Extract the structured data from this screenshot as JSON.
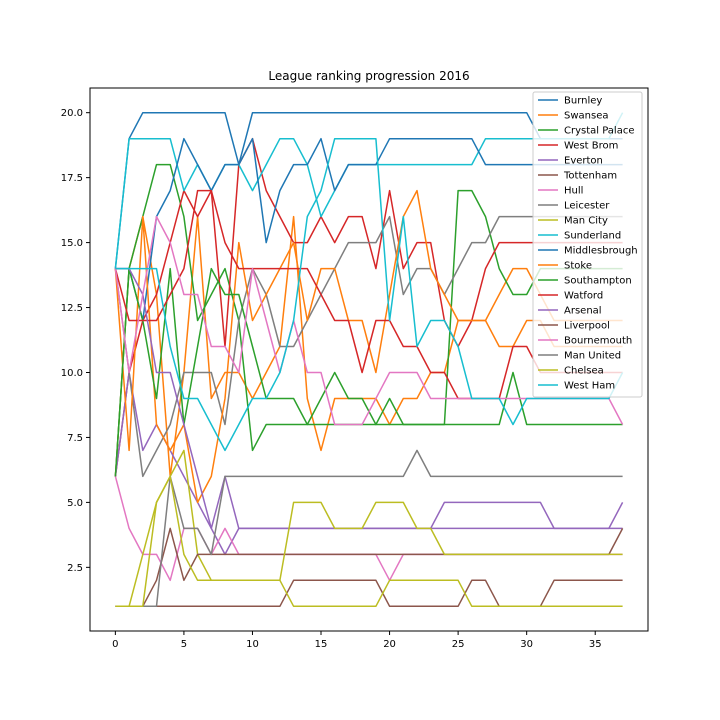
{
  "chart_data": {
    "type": "line",
    "title": "League ranking progression 2016",
    "xlabel": "",
    "ylabel": "",
    "xlim": [
      -1.85,
      38.85
    ],
    "ylim": [
      0.05,
      20.95
    ],
    "xticks": [
      0,
      5,
      10,
      15,
      20,
      25,
      30,
      35
    ],
    "xtick_labels": [
      "0",
      "5",
      "10",
      "15",
      "20",
      "25",
      "30",
      "35"
    ],
    "yticks": [
      2.5,
      5.0,
      7.5,
      10.0,
      12.5,
      15.0,
      17.5,
      20.0
    ],
    "ytick_labels": [
      "2.5",
      "5.0",
      "7.5",
      "10.0",
      "12.5",
      "15.0",
      "17.5",
      "20.0"
    ],
    "grid": false,
    "legend_position": "top-right",
    "x": [
      0,
      1,
      2,
      3,
      4,
      5,
      6,
      7,
      8,
      9,
      10,
      11,
      12,
      13,
      14,
      15,
      16,
      17,
      18,
      19,
      20,
      21,
      22,
      23,
      24,
      25,
      26,
      27,
      28,
      29,
      30,
      31,
      32,
      33,
      34,
      35,
      36,
      37
    ],
    "series": [
      {
        "name": "Burnley",
        "color": "#1f77b4",
        "values": [
          14,
          19,
          20,
          20,
          20,
          20,
          20,
          20,
          20,
          18,
          20,
          20,
          20,
          20,
          20,
          20,
          20,
          20,
          20,
          20,
          20,
          20,
          20,
          20,
          20,
          20,
          20,
          20,
          20,
          20,
          20,
          19,
          19,
          19,
          19,
          19,
          19,
          19
        ]
      },
      {
        "name": "Swansea",
        "color": "#ff7f0e",
        "values": [
          6,
          14,
          16,
          13,
          6,
          10,
          16,
          9,
          10,
          10,
          9,
          10,
          11,
          16,
          9,
          7,
          9,
          9,
          9,
          9,
          8,
          9,
          9,
          10,
          10,
          12,
          12,
          12,
          13,
          14,
          14,
          13,
          12,
          12,
          12,
          12,
          12,
          12
        ]
      },
      {
        "name": "Crystal Palace",
        "color": "#2ca02c",
        "values": [
          6,
          14,
          16,
          18,
          18,
          16,
          12,
          13,
          14,
          12,
          7,
          8,
          8,
          8,
          8,
          9,
          10,
          9,
          9,
          8,
          9,
          8,
          8,
          8,
          8,
          17,
          17,
          16,
          14,
          13,
          13,
          14,
          14,
          14,
          14,
          14,
          14,
          14
        ]
      },
      {
        "name": "West Brom",
        "color": "#d62728",
        "values": [
          6,
          10,
          12,
          13,
          15,
          17,
          16,
          17,
          11,
          18,
          19,
          17,
          16,
          15,
          15,
          16,
          15,
          16,
          16,
          14,
          17,
          14,
          15,
          15,
          12,
          11,
          12,
          14,
          15,
          15,
          15,
          15,
          15,
          15,
          15,
          15,
          15,
          15
        ]
      },
      {
        "name": "Everton",
        "color": "#9467bd",
        "values": [
          6,
          10,
          7,
          8,
          7,
          6,
          5,
          4,
          3,
          4,
          4,
          4,
          4,
          4,
          4,
          4,
          4,
          4,
          4,
          4,
          4,
          4,
          4,
          4,
          5,
          5,
          5,
          5,
          5,
          5,
          5,
          5,
          4,
          4,
          4,
          4,
          4,
          5
        ]
      },
      {
        "name": "Tottenham",
        "color": "#8c564b",
        "values": [
          1,
          1,
          1,
          1,
          1,
          1,
          1,
          1,
          1,
          1,
          1,
          1,
          1,
          2,
          2,
          2,
          2,
          2,
          2,
          2,
          1,
          1,
          1,
          1,
          1,
          1,
          2,
          2,
          1,
          1,
          1,
          1,
          2,
          2,
          2,
          2,
          2,
          2
        ]
      },
      {
        "name": "Hull",
        "color": "#e377c2",
        "values": [
          6,
          4,
          3,
          3,
          2,
          4,
          4,
          3,
          4,
          3,
          3,
          3,
          3,
          3,
          3,
          3,
          3,
          3,
          3,
          3,
          2,
          3,
          3,
          3,
          3,
          3,
          3,
          3,
          3,
          3,
          3,
          3,
          3,
          3,
          3,
          3,
          3,
          3
        ]
      },
      {
        "name": "Leicester",
        "color": "#7f7f7f",
        "values": [
          14,
          10,
          6,
          7,
          8,
          10,
          10,
          10,
          8,
          12,
          14,
          13,
          11,
          11,
          12,
          13,
          14,
          15,
          15,
          15,
          16,
          13,
          14,
          14,
          13,
          14,
          15,
          15,
          16,
          16,
          16,
          16,
          16,
          16,
          16,
          16,
          16,
          16
        ]
      },
      {
        "name": "Man City",
        "color": "#bcbd22",
        "values": [
          1,
          1,
          3,
          5,
          6,
          7,
          3,
          2,
          2,
          2,
          2,
          2,
          2,
          1,
          1,
          1,
          1,
          1,
          1,
          1,
          2,
          2,
          2,
          2,
          2,
          2,
          1,
          1,
          1,
          1,
          1,
          1,
          1,
          1,
          1,
          1,
          1,
          1
        ]
      },
      {
        "name": "Sunderland",
        "color": "#17becf",
        "values": [
          14,
          19,
          19,
          19,
          19,
          17,
          18,
          17,
          18,
          18,
          17,
          18,
          19,
          19,
          18,
          16,
          17,
          18,
          18,
          18,
          18,
          18,
          18,
          18,
          18,
          18,
          18,
          19,
          19,
          19,
          19,
          19,
          19,
          19,
          19,
          19,
          19,
          20
        ]
      },
      {
        "name": "Middlesbrough",
        "color": "#1f77b4",
        "values": [
          14,
          14,
          12,
          16,
          17,
          19,
          18,
          17,
          18,
          18,
          19,
          15,
          17,
          18,
          18,
          19,
          17,
          18,
          18,
          18,
          19,
          19,
          19,
          19,
          19,
          19,
          19,
          18,
          18,
          18,
          18,
          18,
          18,
          18,
          18,
          18,
          18,
          18
        ]
      },
      {
        "name": "Stoke",
        "color": "#ff7f0e",
        "values": [
          14,
          7,
          16,
          8,
          7,
          8,
          5,
          6,
          9,
          15,
          12,
          13,
          14,
          15,
          12,
          14,
          14,
          12,
          12,
          10,
          13,
          16,
          17,
          14,
          13,
          12,
          12,
          12,
          11,
          11,
          12,
          12,
          11,
          11,
          11,
          11,
          11,
          11
        ]
      },
      {
        "name": "Southampton",
        "color": "#2ca02c",
        "values": [
          6,
          14,
          12,
          9,
          14,
          8,
          11,
          14,
          13,
          13,
          11,
          9,
          9,
          9,
          8,
          8,
          8,
          8,
          8,
          8,
          8,
          8,
          8,
          8,
          8,
          8,
          8,
          8,
          8,
          10,
          8,
          8,
          8,
          8,
          8,
          8,
          8,
          8
        ]
      },
      {
        "name": "Watford",
        "color": "#d62728",
        "values": [
          14,
          12,
          12,
          12,
          13,
          14,
          17,
          17,
          15,
          14,
          14,
          14,
          14,
          14,
          14,
          13,
          12,
          12,
          10,
          12,
          12,
          11,
          11,
          10,
          10,
          9,
          9,
          9,
          9,
          11,
          11,
          10,
          10,
          10,
          10,
          10,
          10,
          10
        ]
      },
      {
        "name": "Arsenal",
        "color": "#9467bd",
        "values": [
          14,
          14,
          13,
          10,
          10,
          8,
          6,
          4,
          6,
          4,
          4,
          4,
          4,
          4,
          4,
          4,
          4,
          4,
          4,
          4,
          4,
          4,
          4,
          4,
          4,
          4,
          4,
          4,
          4,
          4,
          4,
          4,
          4,
          4,
          4,
          4,
          4,
          4
        ]
      },
      {
        "name": "Liverpool",
        "color": "#8c564b",
        "values": [
          1,
          1,
          1,
          2,
          4,
          2,
          3,
          3,
          3,
          3,
          3,
          3,
          3,
          3,
          3,
          3,
          3,
          3,
          3,
          3,
          3,
          3,
          3,
          3,
          3,
          3,
          3,
          3,
          3,
          3,
          3,
          3,
          3,
          3,
          3,
          3,
          3,
          4
        ]
      },
      {
        "name": "Bournemouth",
        "color": "#e377c2",
        "values": [
          14,
          10,
          13,
          16,
          15,
          13,
          13,
          11,
          11,
          10,
          14,
          12,
          10,
          12,
          10,
          10,
          8,
          8,
          8,
          9,
          10,
          10,
          10,
          9,
          9,
          9,
          9,
          9,
          9,
          9,
          9,
          9,
          9,
          9,
          9,
          9,
          9,
          8
        ]
      },
      {
        "name": "Man United",
        "color": "#7f7f7f",
        "values": [
          1,
          1,
          1,
          1,
          6,
          4,
          4,
          3,
          6,
          6,
          6,
          6,
          6,
          6,
          6,
          6,
          6,
          6,
          6,
          6,
          6,
          6,
          7,
          6,
          6,
          6,
          6,
          6,
          6,
          6,
          6,
          6,
          6,
          6,
          6,
          6,
          6,
          6
        ]
      },
      {
        "name": "Chelsea",
        "color": "#bcbd22",
        "values": [
          1,
          1,
          1,
          5,
          6,
          3,
          2,
          2,
          2,
          2,
          2,
          2,
          2,
          5,
          5,
          5,
          4,
          4,
          4,
          5,
          5,
          5,
          4,
          4,
          3,
          3,
          3,
          3,
          3,
          3,
          3,
          3,
          3,
          3,
          3,
          3,
          3,
          3
        ]
      },
      {
        "name": "West Ham",
        "color": "#17becf",
        "values": [
          14,
          14,
          14,
          14,
          11,
          9,
          9,
          8,
          7,
          8,
          9,
          9,
          10,
          12,
          16,
          17,
          19,
          19,
          19,
          19,
          12,
          16,
          11,
          12,
          12,
          11,
          9,
          9,
          9,
          8,
          9,
          9,
          9,
          9,
          9,
          9,
          9,
          10
        ]
      }
    ]
  }
}
